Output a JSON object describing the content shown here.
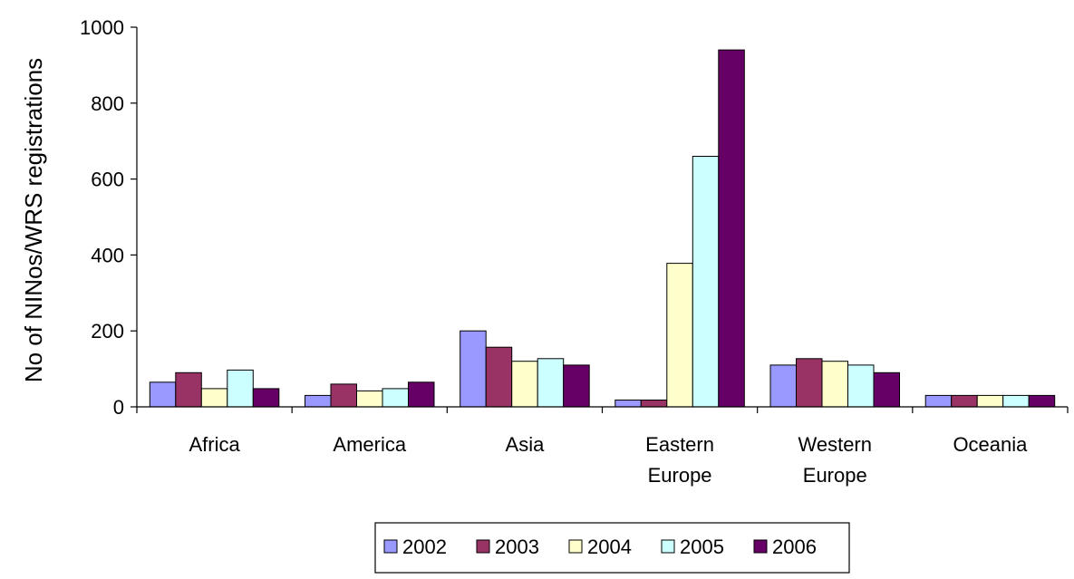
{
  "chart_data": {
    "type": "bar",
    "ylabel": "No of NINos/WRS registrations",
    "xlabel": "",
    "ylim": [
      0,
      1000
    ],
    "yticks": [
      0,
      200,
      400,
      600,
      800,
      1000
    ],
    "grid": false,
    "legend_position": "bottom",
    "categories": [
      [
        "Africa"
      ],
      [
        "America"
      ],
      [
        "Asia"
      ],
      [
        "Eastern",
        "Europe"
      ],
      [
        "Western",
        "Europe"
      ],
      [
        "Oceania"
      ]
    ],
    "series": [
      {
        "name": "2002",
        "color": "#9999ff",
        "values": [
          65,
          30,
          200,
          18,
          110,
          30
        ]
      },
      {
        "name": "2003",
        "color": "#993366",
        "values": [
          90,
          60,
          157,
          18,
          127,
          30
        ]
      },
      {
        "name": "2004",
        "color": "#ffffcc",
        "values": [
          48,
          42,
          120,
          378,
          120,
          30
        ]
      },
      {
        "name": "2005",
        "color": "#ccffff",
        "values": [
          97,
          48,
          127,
          660,
          110,
          30
        ]
      },
      {
        "name": "2006",
        "color": "#660066",
        "values": [
          48,
          65,
          110,
          940,
          90,
          30
        ]
      }
    ]
  }
}
